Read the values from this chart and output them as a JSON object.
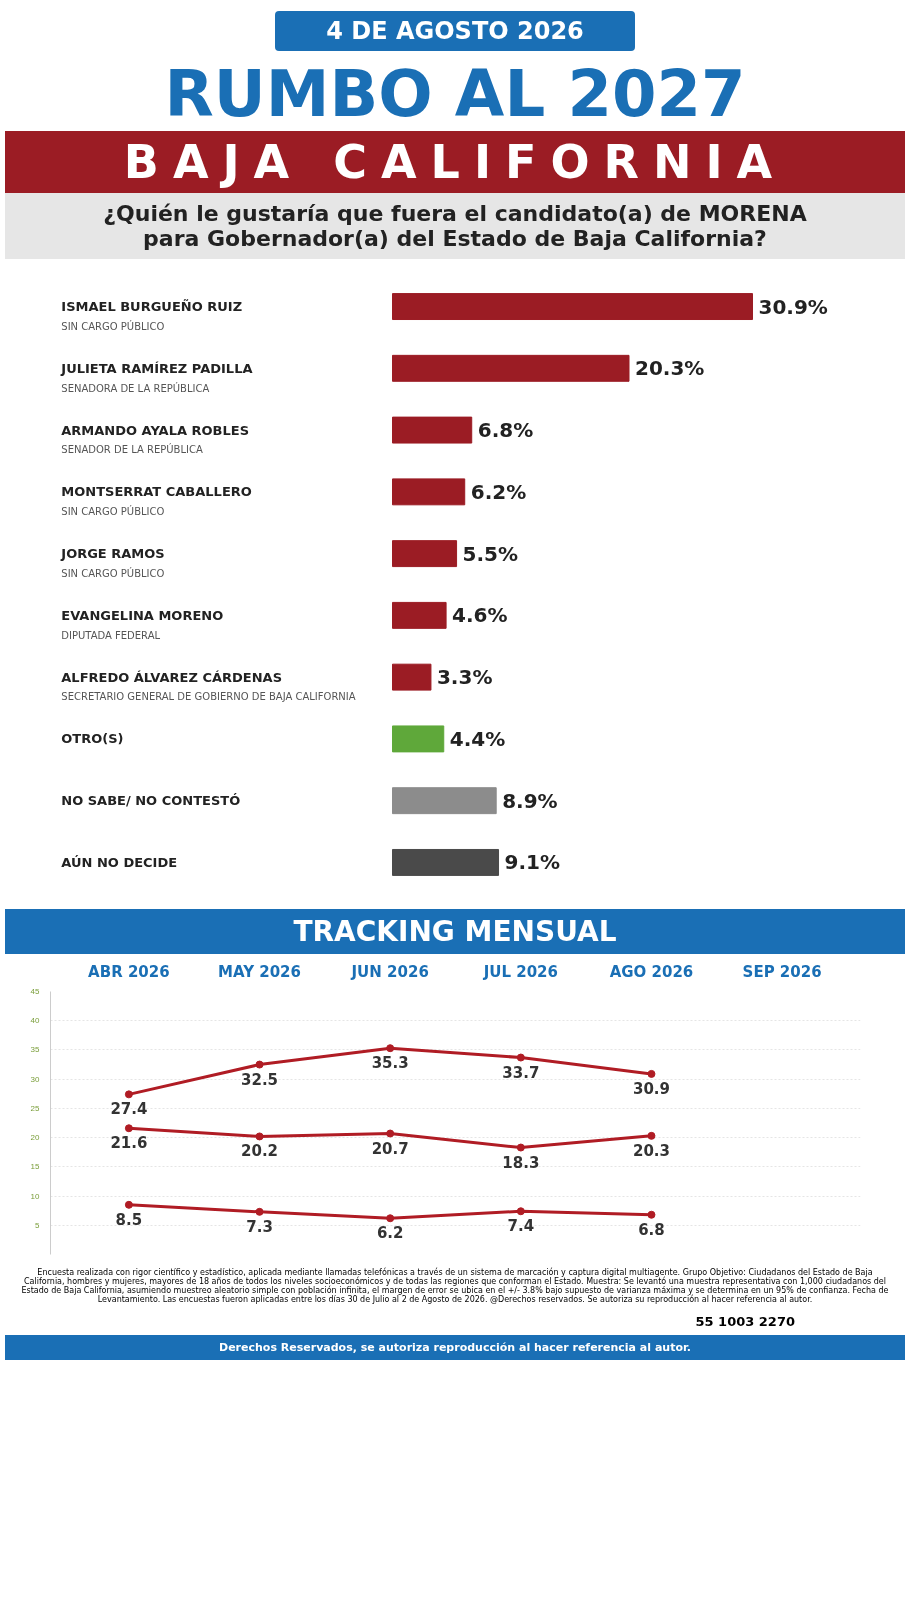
{
  "chart_data": [
    {
      "type": "bar",
      "orientation": "horizontal",
      "title": "RUMBO AL 2027",
      "subtitle": "BAJA CALIFORNIA",
      "annotations": [
        "4 DE AGOSTO 2026",
        "¿Quién le gustaría que fuera el candidato(a) de MORENA para Gobernador(a) del Estado de Baja California?",
        "SIN CARGO PÚBLICO",
        "SENADORA DE LA REPÚBLICA",
        "SENADOR DE LA REPÚBLICA",
        "SIN CARGO PÚBLICO",
        "SIN CARGO PÚBLICO",
        "DIPUTADA FEDERAL",
        "SECRETARIO GENERAL DE GOBIERNO DE BAJA CALIFORNIA"
      ],
      "categories": [
        "ISMAEL BURGUEÑO RUIZ",
        "JULIETA RAMÍREZ PADILLA",
        "ARMANDO AYALA ROBLES",
        "MONTSERRAT CABALLERO",
        "JORGE RAMOS",
        "EVANGELINA MORENO",
        "ALFREDO ÁLVAREZ CÁRDENAS",
        "OTRO(S)",
        "NO SABE/ NO CONTESTÓ",
        "AÚN NO DECIDE"
      ],
      "values": [
        30.9,
        20.3,
        6.8,
        6.2,
        5.5,
        4.6,
        3.3,
        4.4,
        8.9,
        9.1
      ],
      "value_labels": [
        "30.9%",
        "20.3%",
        "6.8%",
        "6.2%",
        "5.5%",
        "4.6%",
        "3.3%",
        "4.4%",
        "8.9%",
        "9.1%"
      ],
      "colors": [
        "#9b1c24",
        "#9b1c24",
        "#9b1c24",
        "#9b1c24",
        "#9b1c24",
        "#9b1c24",
        "#9b1c24",
        "#5fa83a",
        "#8c8c8c",
        "#4a4a4a"
      ],
      "grid": false
    },
    {
      "type": "line",
      "title": "TRACKING MENSUAL",
      "categories": [
        "ABR 2026",
        "MAY 2026",
        "JUN 2026",
        "JUL 2026",
        "AGO 2026",
        "SEP 2026"
      ],
      "series": [
        {
          "color": "#b01c24",
          "values": [
            27.4,
            32.5,
            35.3,
            33.7,
            30.9,
            null
          ]
        },
        {
          "color": "#b01c24",
          "values": [
            21.6,
            20.2,
            20.7,
            18.3,
            20.3,
            null
          ]
        },
        {
          "color": "#b01c24",
          "values": [
            8.5,
            7.3,
            6.2,
            7.4,
            6.8,
            null
          ]
        }
      ],
      "ylim": [
        0,
        45
      ],
      "yticks": [
        5,
        10,
        15,
        20,
        25,
        30,
        35,
        40,
        45
      ],
      "grid": "y",
      "marker": "circle",
      "line_style": "solid",
      "data_labels": true,
      "annotations": [
        "Encuesta realizada con rigor científico y estadístico, aplicada mediante llamadas telefónicas a través de un sistema de marcación y captura digital multiagente. Grupo Objetivo: Ciudadanos del Estado de Baja California, hombres y mujeres, mayores de 18 años de todos los niveles socioeconómicos y de todas las regiones que conforman el Estado. Muestra: Se levantó una muestra representativa con 1,000 ciudadanos del Estado de Baja California, asumiendo muestreo aleatorio simple con población infinita, el margen de error se ubica en el +/- 3.8% bajo supuesto de varianza máxima y se determina en un 95% de confianza. Fecha de Levantamiento. Las encuestas fueron aplicadas entre los días 30 de Julio al 2 de Agosto de 2026. @Derechos reservados. Se autoriza su reproducción al hacer referencia al autor.",
        "55 1003 2270",
        "Derechos Reservados, se autoriza reproducción al hacer referencia al autor."
      ]
    }
  ]
}
